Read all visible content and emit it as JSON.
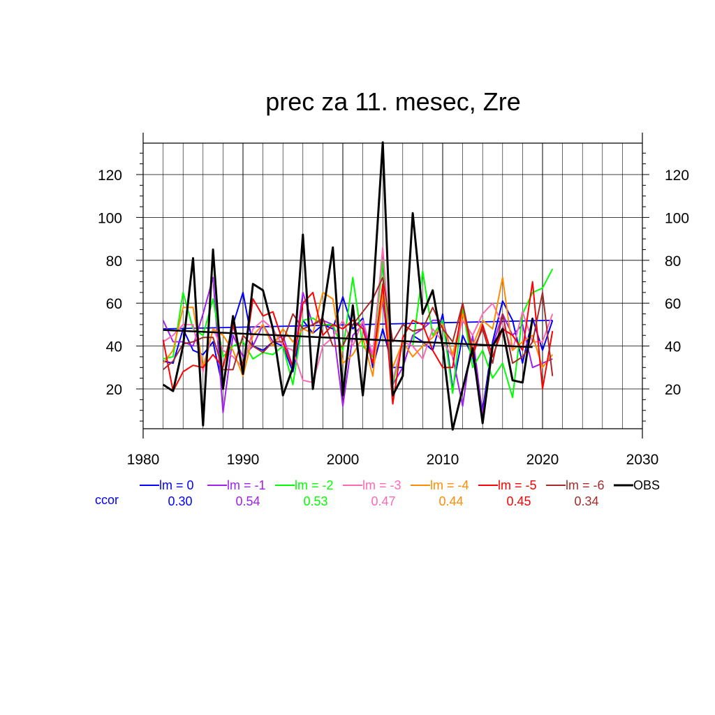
{
  "chart_data": {
    "type": "line",
    "title": "prec za 11. mesec, Zre",
    "xlabel": "",
    "ylabel": "",
    "xlim": [
      1980,
      2030
    ],
    "ylim": [
      0,
      135
    ],
    "x_ticks": [
      1980,
      1990,
      2000,
      2010,
      2020,
      2030
    ],
    "y_ticks": [
      20,
      40,
      60,
      80,
      100,
      120
    ],
    "grid": true,
    "legend_position": "bottom",
    "ccor_label": "ccor",
    "series": [
      {
        "name": "lm = 0",
        "color": "#0000ff",
        "ccor": "0.30",
        "trend": [
          48,
          52
        ],
        "x": [
          1982,
          1983,
          1984,
          1985,
          1986,
          1987,
          1988,
          1989,
          1990,
          1991,
          1992,
          1993,
          1994,
          1995,
          1996,
          1997,
          1998,
          1999,
          2000,
          2001,
          2002,
          2003,
          2004,
          2005,
          2006,
          2007,
          2008,
          2009,
          2010,
          2011,
          2012,
          2013,
          2014,
          2015,
          2016,
          2017,
          2018,
          2019,
          2020,
          2021
        ],
        "values": [
          33,
          32,
          48,
          38,
          36,
          42,
          20,
          50,
          65,
          40,
          38,
          42,
          40,
          28,
          52,
          46,
          50,
          48,
          63,
          48,
          53,
          30,
          48,
          30,
          30,
          45,
          42,
          38,
          55,
          20,
          45,
          35,
          10,
          42,
          61,
          52,
          32,
          53,
          38,
          52
        ]
      },
      {
        "name": "lm = -1",
        "color": "#a020f0",
        "ccor": "0.54",
        "trend": null,
        "x": [
          1982,
          1983,
          1984,
          1985,
          1986,
          1987,
          1988,
          1989,
          1990,
          1991,
          1992,
          1993,
          1994,
          1995,
          1996,
          1997,
          1998,
          1999,
          2000,
          2001,
          2002,
          2003,
          2004,
          2005,
          2006,
          2007,
          2008,
          2009,
          2010,
          2011,
          2012,
          2013,
          2014,
          2015,
          2016,
          2017,
          2018,
          2019,
          2020,
          2021
        ],
        "values": [
          52,
          42,
          42,
          40,
          55,
          72,
          9,
          45,
          35,
          40,
          50,
          42,
          45,
          30,
          65,
          50,
          52,
          50,
          12,
          45,
          50,
          35,
          62,
          22,
          30,
          45,
          48,
          52,
          52,
          35,
          12,
          45,
          8,
          40,
          55,
          45,
          50,
          30,
          32,
          34
        ]
      },
      {
        "name": "lm = -2",
        "color": "#00ff00",
        "ccor": "0.53",
        "trend": null,
        "x": [
          1982,
          1983,
          1984,
          1985,
          1986,
          1987,
          1988,
          1989,
          1990,
          1991,
          1992,
          1993,
          1994,
          1995,
          1996,
          1997,
          1998,
          1999,
          2000,
          2001,
          2002,
          2003,
          2004,
          2005,
          2006,
          2007,
          2008,
          2009,
          2010,
          2011,
          2012,
          2013,
          2014,
          2015,
          2016,
          2017,
          2018,
          2019,
          2020,
          2021
        ],
        "values": [
          34,
          35,
          65,
          48,
          45,
          62,
          35,
          40,
          42,
          34,
          37,
          36,
          40,
          22,
          52,
          53,
          50,
          50,
          38,
          72,
          40,
          35,
          80,
          22,
          42,
          40,
          75,
          45,
          52,
          18,
          58,
          30,
          38,
          25,
          32,
          16,
          55,
          65,
          67,
          76
        ]
      },
      {
        "name": "lm = -3",
        "color": "#ff69b4",
        "ccor": "0.47",
        "trend": null,
        "x": [
          1982,
          1983,
          1984,
          1985,
          1986,
          1987,
          1988,
          1989,
          1990,
          1991,
          1992,
          1993,
          1994,
          1995,
          1996,
          1997,
          1998,
          1999,
          2000,
          2001,
          2002,
          2003,
          2004,
          2005,
          2006,
          2007,
          2008,
          2009,
          2010,
          2011,
          2012,
          2013,
          2014,
          2015,
          2016,
          2017,
          2018,
          2019,
          2020,
          2021
        ],
        "values": [
          42,
          45,
          50,
          50,
          28,
          48,
          38,
          35,
          30,
          48,
          52,
          48,
          40,
          38,
          24,
          23,
          40,
          44,
          52,
          40,
          52,
          36,
          86,
          24,
          42,
          40,
          34,
          48,
          42,
          35,
          52,
          45,
          55,
          60,
          50,
          38,
          56,
          42,
          42,
          55
        ]
      },
      {
        "name": "lm = -4",
        "color": "#ff8c00",
        "ccor": "0.44",
        "trend": null,
        "x": [
          1982,
          1983,
          1984,
          1985,
          1986,
          1987,
          1988,
          1989,
          1990,
          1991,
          1992,
          1993,
          1994,
          1995,
          1996,
          1997,
          1998,
          1999,
          2000,
          2001,
          2002,
          2003,
          2004,
          2005,
          2006,
          2007,
          2008,
          2009,
          2010,
          2011,
          2012,
          2013,
          2014,
          2015,
          2016,
          2017,
          2018,
          2019,
          2020,
          2021
        ],
        "values": [
          32,
          38,
          58,
          58,
          30,
          48,
          45,
          38,
          26,
          45,
          50,
          40,
          48,
          42,
          48,
          46,
          65,
          62,
          32,
          36,
          44,
          26,
          64,
          30,
          42,
          35,
          40,
          44,
          50,
          36,
          55,
          40,
          52,
          48,
          72,
          38,
          42,
          45,
          30,
          36
        ]
      },
      {
        "name": "lm = -5",
        "color": "#ff0000",
        "ccor": "0.45",
        "trend": null,
        "x": [
          1982,
          1983,
          1984,
          1985,
          1986,
          1987,
          1988,
          1989,
          1990,
          1991,
          1992,
          1993,
          1994,
          1995,
          1996,
          1997,
          1998,
          1999,
          2000,
          2001,
          2002,
          2003,
          2004,
          2005,
          2006,
          2007,
          2008,
          2009,
          2010,
          2011,
          2012,
          2013,
          2014,
          2015,
          2016,
          2017,
          2018,
          2019,
          2020,
          2021
        ],
        "values": [
          43,
          19,
          28,
          31,
          30,
          36,
          30,
          50,
          30,
          62,
          54,
          56,
          42,
          30,
          60,
          65,
          45,
          50,
          48,
          52,
          48,
          32,
          69,
          13,
          44,
          52,
          50,
          38,
          30,
          30,
          60,
          35,
          50,
          35,
          48,
          45,
          38,
          70,
          20,
          47
        ]
      },
      {
        "name": "lm = -6",
        "color": "#a52a2a",
        "ccor": "0.34",
        "trend": null,
        "x": [
          1982,
          1983,
          1984,
          1985,
          1986,
          1987,
          1988,
          1989,
          1990,
          1991,
          1992,
          1993,
          1994,
          1995,
          1996,
          1997,
          1998,
          1999,
          2000,
          2001,
          2002,
          2003,
          2004,
          2005,
          2006,
          2007,
          2008,
          2009,
          2010,
          2011,
          2012,
          2013,
          2014,
          2015,
          2016,
          2017,
          2018,
          2019,
          2020,
          2021
        ],
        "values": [
          29,
          33,
          41,
          42,
          44,
          44,
          29,
          29,
          45,
          40,
          37,
          42,
          42,
          55,
          48,
          50,
          53,
          40,
          40,
          50,
          56,
          62,
          72,
          42,
          50,
          47,
          48,
          58,
          48,
          42,
          60,
          38,
          48,
          32,
          55,
          32,
          35,
          42,
          65,
          26
        ]
      },
      {
        "name": "OBS",
        "color": "#000000",
        "ccor": "",
        "trend": [
          47.5,
          39.5
        ],
        "x": [
          1982,
          1983,
          1984,
          1985,
          1986,
          1987,
          1988,
          1989,
          1990,
          1991,
          1992,
          1993,
          1994,
          1995,
          1996,
          1997,
          1998,
          1999,
          2000,
          2001,
          2002,
          2003,
          2004,
          2005,
          2006,
          2007,
          2008,
          2009,
          2010,
          2011,
          2012,
          2013,
          2014,
          2015,
          2016,
          2017,
          2018,
          2019
        ],
        "values": [
          22,
          19,
          40,
          81,
          3,
          85,
          20,
          54,
          27,
          69,
          66,
          48,
          17,
          30,
          92,
          20,
          55,
          86,
          17,
          59,
          17,
          62,
          135,
          17,
          26,
          102,
          55,
          66,
          40,
          1,
          20,
          39,
          4,
          40,
          48,
          24,
          23,
          53
        ]
      }
    ]
  }
}
